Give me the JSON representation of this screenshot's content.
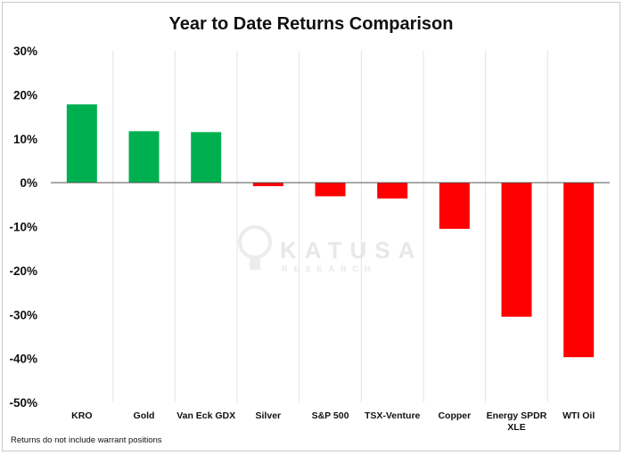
{
  "chart_data": {
    "type": "bar",
    "title": "Year to Date Returns Comparison",
    "xlabel": "",
    "ylabel": "",
    "ylim": [
      -50,
      30
    ],
    "yticks": [
      30,
      20,
      10,
      0,
      -10,
      -20,
      -30,
      -40,
      -50
    ],
    "ytick_labels": [
      "30%",
      "20%",
      "10%",
      "0%",
      "-10%",
      "-20%",
      "-30%",
      "-40%",
      "-50%"
    ],
    "grid": "vertical",
    "legend": "none",
    "categories": [
      "KRO",
      "Gold",
      "Van Eck GDX",
      "Silver",
      "S&P 500",
      "TSX-Venture",
      "Copper",
      "Energy SPDR XLE",
      "WTI Oil"
    ],
    "category_lines": [
      [
        "KRO"
      ],
      [
        "Gold"
      ],
      [
        "Van Eck GDX"
      ],
      [
        "Silver"
      ],
      [
        "S&P 500"
      ],
      [
        "TSX-Venture"
      ],
      [
        "Copper"
      ],
      [
        "Energy SPDR",
        "XLE"
      ],
      [
        "WTI Oil"
      ]
    ],
    "values": [
      17.8,
      11.7,
      11.5,
      -0.8,
      -3.1,
      -3.6,
      -10.5,
      -30.5,
      -39.7
    ],
    "colors": {
      "positive": "#00b050",
      "negative": "#ff0000"
    }
  },
  "footnote": "Returns do not include warrant positions",
  "watermark": {
    "brand": "KATUSA",
    "sub": "RESEARCH"
  }
}
